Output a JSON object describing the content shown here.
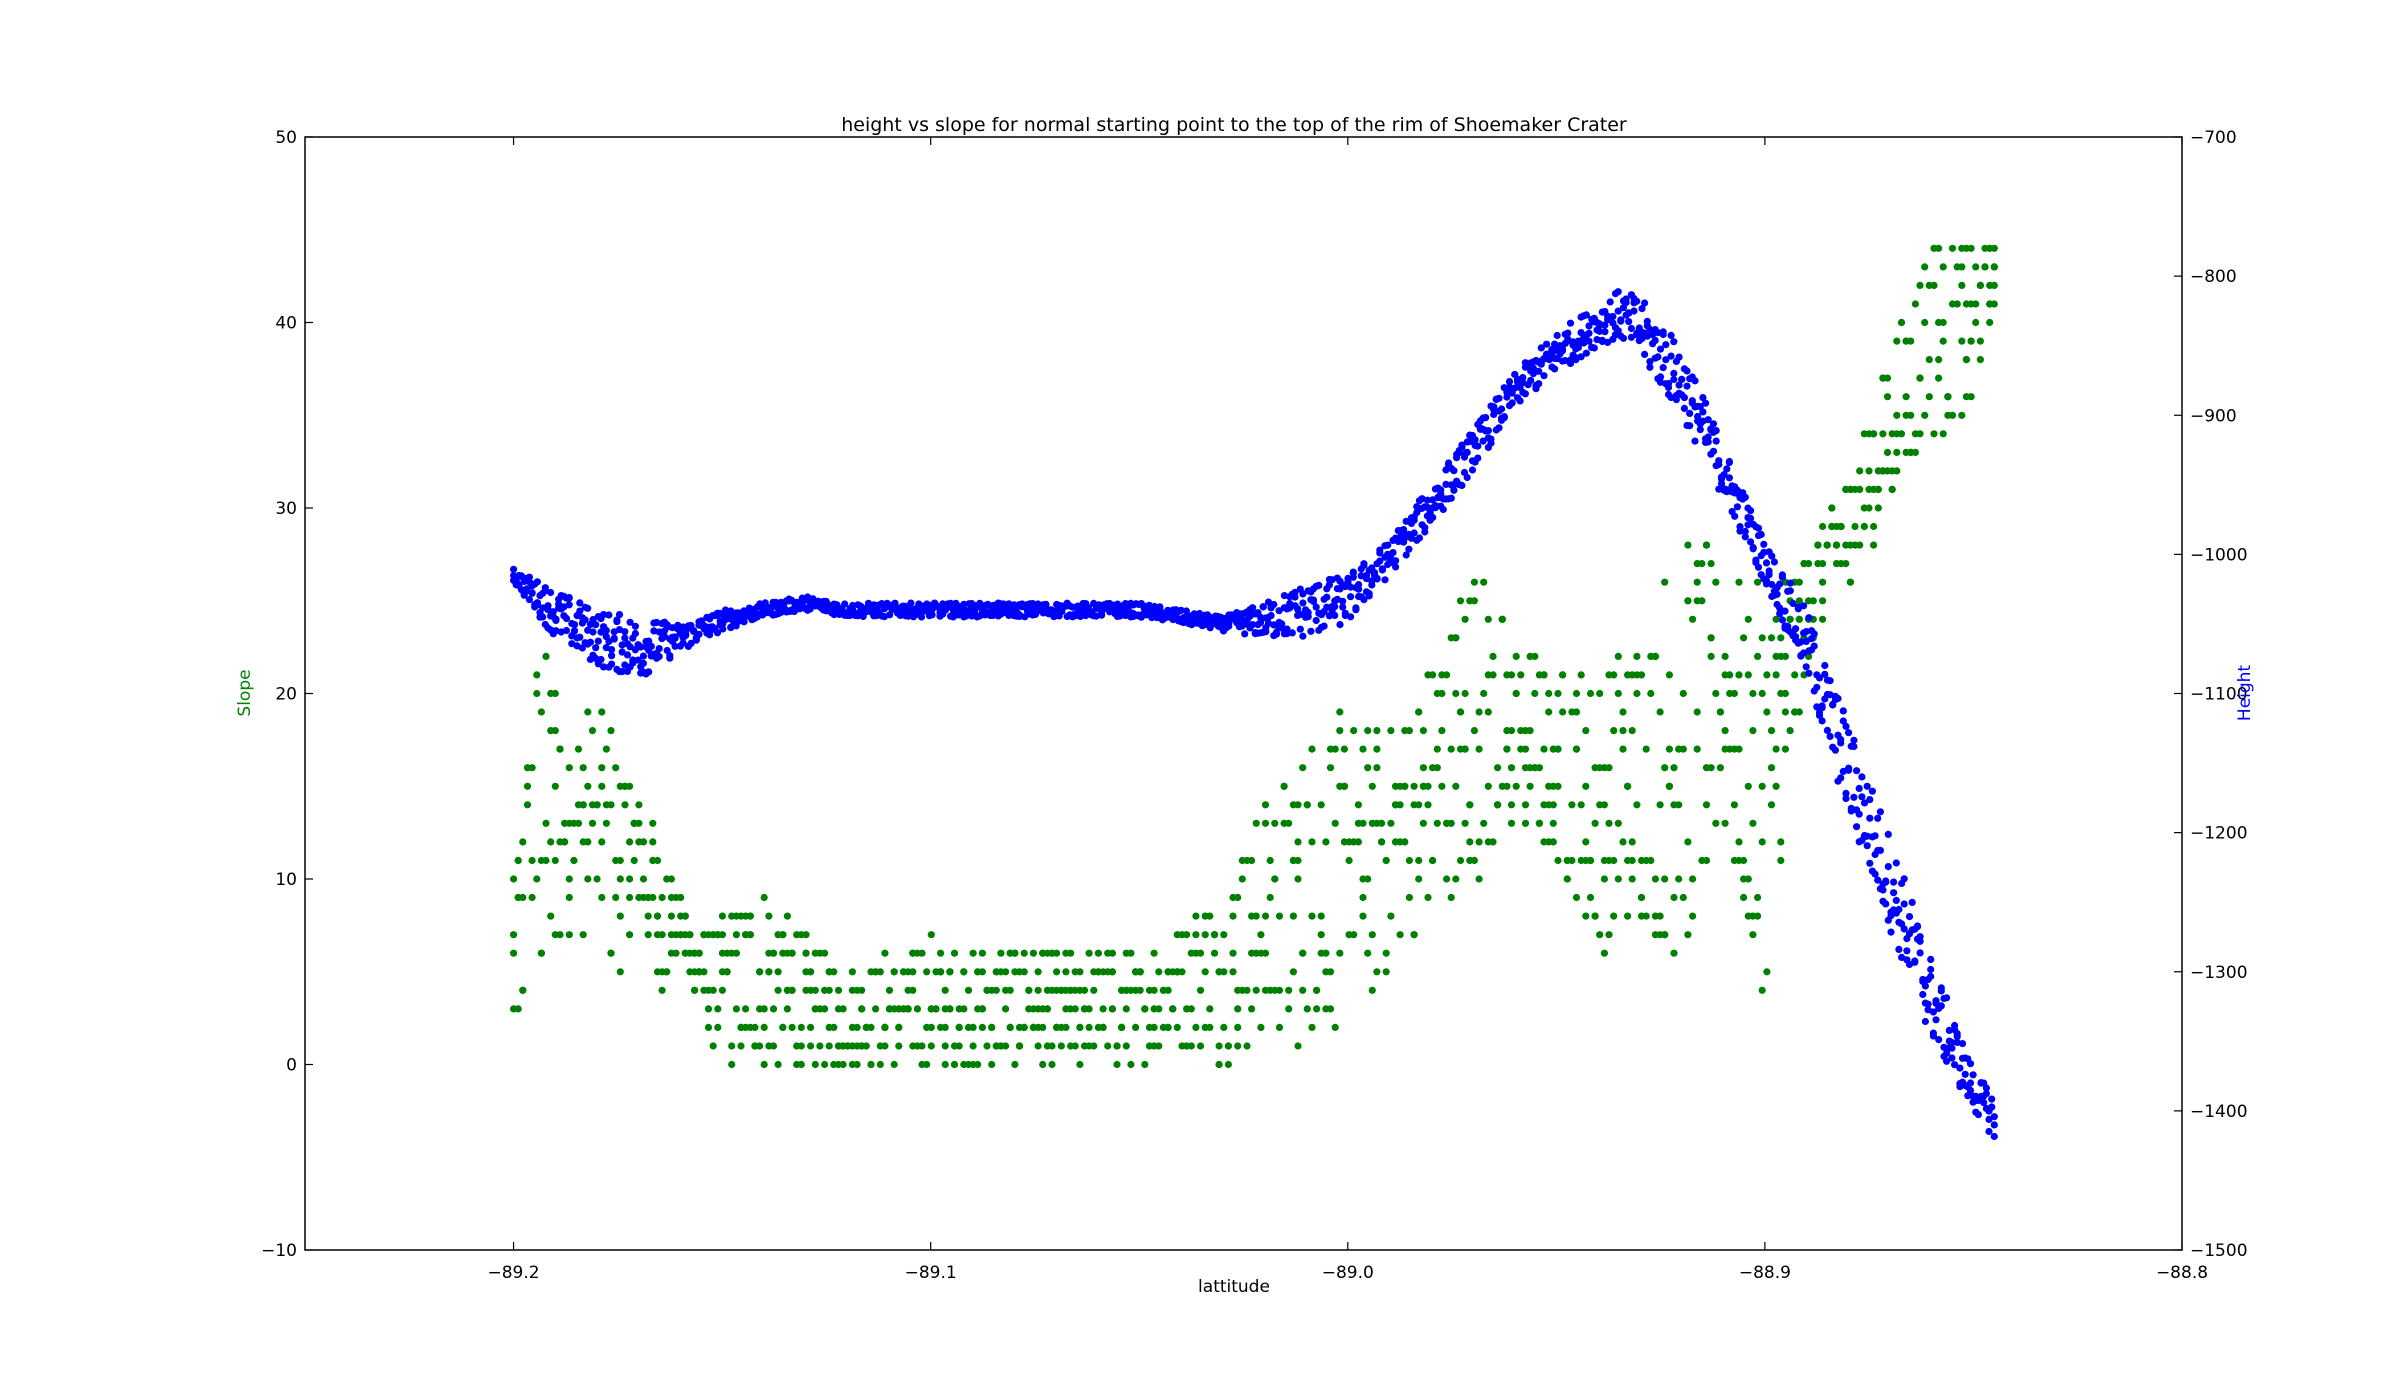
{
  "chart_data": {
    "type": "scatter",
    "title": "height vs slope for normal starting point to the top of the rim of Shoemaker Crater",
    "xlabel": "lattitude",
    "ylabel": "Slope",
    "y2label": "Height",
    "xlim": [
      -89.25,
      -88.8
    ],
    "ylim": [
      -10,
      50
    ],
    "y2lim": [
      -1500,
      -700
    ],
    "xticks": [
      "−89.2",
      "−89.1",
      "−89.0",
      "−88.9",
      "−88.8"
    ],
    "xtick_values": [
      -89.2,
      -89.1,
      -89.0,
      -88.9,
      -88.8
    ],
    "yticks": [
      "−10",
      "0",
      "10",
      "20",
      "30",
      "40",
      "50"
    ],
    "ytick_values": [
      -10,
      0,
      10,
      20,
      30,
      40,
      50
    ],
    "y2ticks": [
      "−1500",
      "−1400",
      "−1300",
      "−1200",
      "−1100",
      "−1000",
      "−900",
      "−800",
      "−700"
    ],
    "y2tick_values": [
      -1500,
      -1400,
      -1300,
      -1200,
      -1100,
      -1000,
      -900,
      -800,
      -700
    ],
    "grid": false,
    "colors": {
      "slope": "#008000",
      "height": "#0000ff",
      "axes": "#000000"
    },
    "series": [
      {
        "axis": "left",
        "color": "#008000",
        "x": [
          -89.2,
          -89.195,
          -89.19,
          -89.185,
          -89.18,
          -89.175,
          -89.17,
          -89.165,
          -89.16,
          -89.155,
          -89.15,
          -89.14,
          -89.13,
          -89.12,
          -89.11,
          -89.1,
          -89.09,
          -89.08,
          -89.07,
          -89.06,
          -89.05,
          -89.04,
          -89.03,
          -89.02,
          -89.01,
          -89.0,
          -88.99,
          -88.98,
          -88.97,
          -88.96,
          -88.95,
          -88.94,
          -88.93,
          -88.92,
          -88.91,
          -88.9,
          -88.89,
          -88.88,
          -88.87,
          -88.86,
          -88.85,
          -88.845
        ],
        "low": [
          0,
          2,
          5,
          8,
          4,
          5,
          8,
          4,
          6,
          3,
          0,
          0,
          0,
          0,
          0,
          0,
          0,
          0,
          0,
          0,
          0,
          1,
          0,
          1,
          1,
          2,
          5,
          8,
          10,
          12,
          11,
          6,
          8,
          5,
          12,
          3,
          22,
          26,
          30,
          34,
          35,
          41
        ],
        "high": [
          10,
          22,
          23,
          19,
          20,
          18,
          15,
          12,
          9,
          7,
          8,
          10,
          7,
          5,
          6,
          7,
          6,
          7,
          6,
          6,
          6,
          8,
          10,
          14,
          18,
          19,
          18,
          22,
          28,
          23,
          22,
          21,
          24,
          29,
          27,
          26,
          28,
          32,
          39,
          45,
          44,
          44
        ]
      },
      {
        "axis": "right",
        "color": "#0000ff",
        "x": [
          -89.2,
          -89.19,
          -89.18,
          -89.17,
          -89.16,
          -89.15,
          -89.14,
          -89.13,
          -89.12,
          -89.11,
          -89.1,
          -89.09,
          -89.08,
          -89.07,
          -89.06,
          -89.05,
          -89.04,
          -89.03,
          -89.02,
          -89.01,
          -89.0,
          -88.99,
          -88.98,
          -88.97,
          -88.96,
          -88.95,
          -88.94,
          -88.935,
          -88.93,
          -88.92,
          -88.91,
          -88.9,
          -88.89,
          -88.88,
          -88.87,
          -88.86,
          -88.85,
          -88.845
        ],
        "low": [
          -1020,
          -1060,
          -1080,
          -1090,
          -1070,
          -1055,
          -1045,
          -1040,
          -1045,
          -1045,
          -1045,
          -1045,
          -1045,
          -1045,
          -1045,
          -1045,
          -1050,
          -1055,
          -1060,
          -1060,
          -1050,
          -1015,
          -980,
          -940,
          -895,
          -870,
          -850,
          -845,
          -860,
          -900,
          -960,
          -1020,
          -1090,
          -1190,
          -1270,
          -1350,
          -1400,
          -1420
        ],
        "high": [
          -1010,
          -1025,
          -1040,
          -1045,
          -1050,
          -1040,
          -1035,
          -1030,
          -1035,
          -1035,
          -1035,
          -1035,
          -1035,
          -1035,
          -1035,
          -1035,
          -1040,
          -1045,
          -1035,
          -1020,
          -1015,
          -990,
          -950,
          -910,
          -870,
          -840,
          -820,
          -810,
          -815,
          -850,
          -920,
          -990,
          -1040,
          -1120,
          -1200,
          -1290,
          -1370,
          -1390
        ]
      }
    ]
  }
}
